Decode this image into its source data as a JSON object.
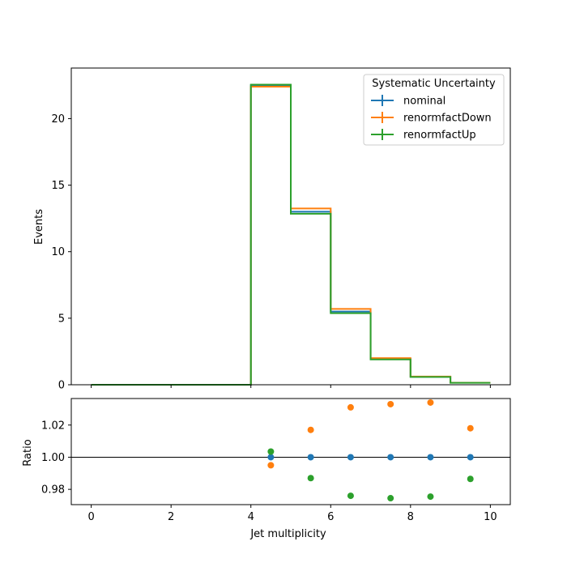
{
  "chart_data": {
    "type": "line",
    "main_panel": {
      "ylabel": "Events",
      "xlim": [
        -0.5,
        10.5
      ],
      "ylim": [
        0,
        23.8
      ],
      "yticks": [
        0,
        5,
        10,
        15,
        20
      ],
      "bin_edges": [
        0,
        1,
        2,
        3,
        4,
        5,
        6,
        7,
        8,
        9,
        10
      ],
      "series": [
        {
          "name": "nominal",
          "color": "#1f77b4",
          "values": [
            0,
            0,
            0,
            0,
            22.5,
            13.0,
            5.5,
            1.95,
            0.6,
            0.15
          ]
        },
        {
          "name": "renormfactDown",
          "color": "#ff7f0e",
          "values": [
            0,
            0,
            0,
            0,
            22.4,
            13.25,
            5.7,
            2.0,
            0.62,
            0.153
          ]
        },
        {
          "name": "renormfactUp",
          "color": "#2ca02c",
          "values": [
            0,
            0,
            0,
            0,
            22.55,
            12.85,
            5.38,
            1.9,
            0.585,
            0.148
          ]
        }
      ]
    },
    "ratio_panel": {
      "xlabel": "Jet multiplicity",
      "ylabel": "Ratio",
      "xlim": [
        -0.5,
        10.5
      ],
      "ylim": [
        0.9705,
        1.0365
      ],
      "yticks": [
        0.98,
        1.0,
        1.02
      ],
      "ytick_labels": [
        "0.98",
        "1.00",
        "1.02"
      ],
      "xticks": [
        0,
        2,
        4,
        6,
        8,
        10
      ],
      "reference_line": 1.0,
      "x": [
        4.5,
        5.5,
        6.5,
        7.5,
        8.5,
        9.5
      ],
      "series": [
        {
          "name": "nominal",
          "color": "#1f77b4",
          "values": [
            1.0,
            1.0,
            1.0,
            1.0,
            1.0,
            1.0
          ]
        },
        {
          "name": "renormfactDown",
          "color": "#ff7f0e",
          "values": [
            0.995,
            1.017,
            1.031,
            1.033,
            1.034,
            1.018
          ]
        },
        {
          "name": "renormfactUp",
          "color": "#2ca02c",
          "values": [
            1.0035,
            0.987,
            0.976,
            0.9745,
            0.9755,
            0.9865
          ]
        }
      ]
    },
    "legend": {
      "title": "Systematic Uncertainty",
      "placement": "top-right",
      "entries": [
        "nominal",
        "renormfactDown",
        "renormfactUp"
      ]
    }
  }
}
